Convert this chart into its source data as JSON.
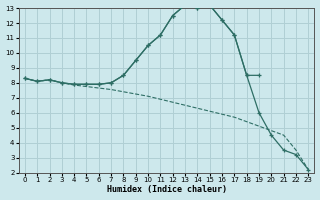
{
  "xlabel": "Humidex (Indice chaleur)",
  "bg_color": "#cde8ec",
  "grid_color": "#b0cfd4",
  "line_color": "#2e6e65",
  "xlim": [
    -0.5,
    23.5
  ],
  "ylim": [
    2,
    13
  ],
  "xticks": [
    0,
    1,
    2,
    3,
    4,
    5,
    6,
    7,
    8,
    9,
    10,
    11,
    12,
    13,
    14,
    15,
    16,
    17,
    18,
    19,
    20,
    21,
    22,
    23
  ],
  "yticks": [
    2,
    3,
    4,
    5,
    6,
    7,
    8,
    9,
    10,
    11,
    12,
    13
  ],
  "line1_x": [
    0,
    1,
    2,
    3,
    4,
    5,
    6,
    7,
    8,
    9,
    10,
    11,
    12,
    13,
    14,
    15,
    16,
    17,
    18,
    19
  ],
  "line1_y": [
    8.3,
    8.1,
    8.2,
    8.0,
    7.9,
    7.9,
    7.9,
    8.0,
    8.5,
    9.5,
    10.5,
    11.2,
    12.5,
    13.2,
    13.0,
    13.2,
    12.2,
    11.2,
    8.5,
    8.5
  ],
  "line2_x": [
    0,
    1,
    2,
    3,
    4,
    5,
    6,
    7,
    8,
    9,
    10,
    11,
    12,
    13,
    14,
    15,
    16,
    17,
    18,
    19,
    20,
    21,
    22,
    23
  ],
  "line2_y": [
    8.3,
    8.1,
    8.2,
    8.0,
    7.9,
    7.9,
    7.9,
    8.0,
    8.5,
    9.5,
    10.5,
    11.2,
    12.5,
    13.2,
    13.0,
    13.2,
    12.2,
    11.2,
    8.5,
    6.0,
    4.5,
    3.5,
    3.2,
    2.2
  ],
  "line3_x": [
    0,
    1,
    2,
    3,
    4,
    5,
    6,
    7,
    8,
    9,
    10,
    11,
    12,
    13,
    14,
    15,
    16,
    17,
    18,
    19,
    20,
    21,
    22,
    23
  ],
  "line3_y": [
    8.3,
    8.1,
    8.2,
    8.0,
    7.85,
    7.75,
    7.65,
    7.55,
    7.4,
    7.25,
    7.1,
    6.9,
    6.7,
    6.5,
    6.3,
    6.1,
    5.9,
    5.7,
    5.4,
    5.1,
    4.8,
    4.5,
    3.5,
    2.2
  ]
}
